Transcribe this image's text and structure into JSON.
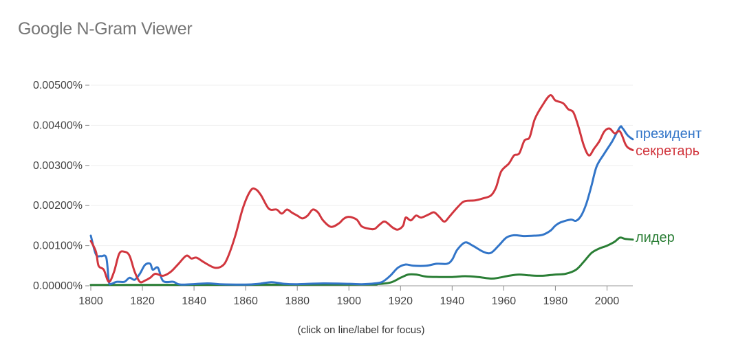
{
  "app": {
    "title": "Google N-Gram Viewer"
  },
  "hint": "(click on line/label for focus)",
  "chart_data": {
    "type": "line",
    "xlim": [
      1800,
      2010
    ],
    "ylim": [
      0,
      0.005
    ],
    "x_ticks": [
      1800,
      1820,
      1840,
      1860,
      1880,
      1900,
      1920,
      1940,
      1960,
      1980,
      2000
    ],
    "x_tick_labels": [
      "1800",
      "1820",
      "1840",
      "1860",
      "1880",
      "1900",
      "1920",
      "1940",
      "1960",
      "1980",
      "2000"
    ],
    "y_ticks": [
      0,
      0.001,
      0.002,
      0.003,
      0.004,
      0.005
    ],
    "y_tick_labels": [
      "0.00000%",
      "0.00100%",
      "0.00200%",
      "0.00300%",
      "0.00400%",
      "0.00500%"
    ],
    "grid": true,
    "legend": "right-end labels",
    "series": [
      {
        "name": "президент",
        "color": "#3275c8",
        "points": [
          [
            1800,
            0.00125
          ],
          [
            1802,
            0.00078
          ],
          [
            1804,
            0.00074
          ],
          [
            1806,
            0.0007
          ],
          [
            1807,
            0.0001
          ],
          [
            1808,
            5e-05
          ],
          [
            1810,
            0.0001
          ],
          [
            1813,
            0.0001
          ],
          [
            1815,
            0.0002
          ],
          [
            1817,
            0.00015
          ],
          [
            1819,
            0.0003
          ],
          [
            1821,
            0.00052
          ],
          [
            1823,
            0.00055
          ],
          [
            1824,
            0.0004
          ],
          [
            1826,
            0.00045
          ],
          [
            1828,
            0.00012
          ],
          [
            1832,
            0.0001
          ],
          [
            1835,
            3e-05
          ],
          [
            1845,
            6e-05
          ],
          [
            1850,
            4e-05
          ],
          [
            1860,
            3e-05
          ],
          [
            1865,
            5e-05
          ],
          [
            1870,
            9e-05
          ],
          [
            1875,
            5e-05
          ],
          [
            1880,
            4e-05
          ],
          [
            1890,
            6e-05
          ],
          [
            1900,
            5e-05
          ],
          [
            1905,
            4e-05
          ],
          [
            1910,
            6e-05
          ],
          [
            1913,
            0.0001
          ],
          [
            1916,
            0.00025
          ],
          [
            1919,
            0.00045
          ],
          [
            1922,
            0.00053
          ],
          [
            1925,
            0.0005
          ],
          [
            1930,
            0.0005
          ],
          [
            1934,
            0.00055
          ],
          [
            1938,
            0.00055
          ],
          [
            1940,
            0.00065
          ],
          [
            1942,
            0.0009
          ],
          [
            1945,
            0.00108
          ],
          [
            1948,
            0.001
          ],
          [
            1952,
            0.00085
          ],
          [
            1955,
            0.00082
          ],
          [
            1958,
            0.001
          ],
          [
            1961,
            0.0012
          ],
          [
            1964,
            0.00126
          ],
          [
            1968,
            0.00124
          ],
          [
            1972,
            0.00125
          ],
          [
            1975,
            0.00127
          ],
          [
            1978,
            0.00137
          ],
          [
            1980,
            0.0015
          ],
          [
            1982,
            0.00158
          ],
          [
            1986,
            0.00165
          ],
          [
            1988,
            0.00162
          ],
          [
            1990,
            0.00175
          ],
          [
            1992,
            0.00205
          ],
          [
            1994,
            0.0025
          ],
          [
            1996,
            0.00298
          ],
          [
            1999,
            0.0033
          ],
          [
            2002,
            0.0036
          ],
          [
            2005,
            0.00395
          ],
          [
            2006,
            0.00393
          ],
          [
            2008,
            0.00375
          ],
          [
            2010,
            0.00365
          ]
        ]
      },
      {
        "name": "секретарь",
        "color": "#d1363e",
        "points": [
          [
            1800,
            0.00112
          ],
          [
            1802,
            0.00085
          ],
          [
            1803,
            0.0005
          ],
          [
            1805,
            0.0004
          ],
          [
            1807,
            0.0001
          ],
          [
            1809,
            0.00035
          ],
          [
            1811,
            0.0008
          ],
          [
            1813,
            0.00085
          ],
          [
            1815,
            0.00075
          ],
          [
            1817,
            0.00035
          ],
          [
            1819,
            0.0001
          ],
          [
            1821,
            0.00013
          ],
          [
            1823,
            0.0002
          ],
          [
            1825,
            0.0003
          ],
          [
            1828,
            0.00025
          ],
          [
            1831,
            0.00035
          ],
          [
            1834,
            0.00055
          ],
          [
            1837,
            0.00075
          ],
          [
            1839,
            0.00068
          ],
          [
            1841,
            0.0007
          ],
          [
            1844,
            0.00058
          ],
          [
            1848,
            0.00045
          ],
          [
            1851,
            0.0005
          ],
          [
            1853,
            0.0007
          ],
          [
            1856,
            0.00125
          ],
          [
            1859,
            0.00195
          ],
          [
            1862,
            0.00238
          ],
          [
            1864,
            0.0024
          ],
          [
            1866,
            0.00225
          ],
          [
            1869,
            0.00192
          ],
          [
            1872,
            0.0019
          ],
          [
            1874,
            0.0018
          ],
          [
            1876,
            0.0019
          ],
          [
            1878,
            0.00182
          ],
          [
            1880,
            0.00175
          ],
          [
            1882,
            0.00168
          ],
          [
            1884,
            0.00175
          ],
          [
            1886,
            0.0019
          ],
          [
            1888,
            0.00183
          ],
          [
            1890,
            0.00163
          ],
          [
            1893,
            0.00147
          ],
          [
            1896,
            0.00155
          ],
          [
            1898,
            0.00167
          ],
          [
            1900,
            0.00172
          ],
          [
            1903,
            0.00165
          ],
          [
            1905,
            0.00148
          ],
          [
            1908,
            0.00142
          ],
          [
            1910,
            0.00142
          ],
          [
            1912,
            0.00153
          ],
          [
            1914,
            0.0016
          ],
          [
            1917,
            0.00145
          ],
          [
            1919,
            0.0014
          ],
          [
            1921,
            0.0015
          ],
          [
            1922,
            0.0017
          ],
          [
            1924,
            0.00163
          ],
          [
            1926,
            0.00175
          ],
          [
            1928,
            0.0017
          ],
          [
            1931,
            0.00178
          ],
          [
            1933,
            0.00183
          ],
          [
            1935,
            0.00172
          ],
          [
            1937,
            0.0016
          ],
          [
            1939,
            0.00173
          ],
          [
            1941,
            0.00188
          ],
          [
            1944,
            0.00208
          ],
          [
            1946,
            0.00212
          ],
          [
            1949,
            0.00213
          ],
          [
            1952,
            0.00218
          ],
          [
            1955,
            0.00225
          ],
          [
            1957,
            0.00245
          ],
          [
            1959,
            0.00285
          ],
          [
            1962,
            0.00305
          ],
          [
            1964,
            0.00325
          ],
          [
            1966,
            0.0033
          ],
          [
            1968,
            0.00362
          ],
          [
            1970,
            0.0037
          ],
          [
            1972,
            0.00415
          ],
          [
            1975,
            0.0045
          ],
          [
            1978,
            0.00475
          ],
          [
            1980,
            0.00462
          ],
          [
            1983,
            0.00455
          ],
          [
            1985,
            0.0044
          ],
          [
            1987,
            0.00432
          ],
          [
            1989,
            0.00395
          ],
          [
            1991,
            0.0035
          ],
          [
            1993,
            0.00325
          ],
          [
            1995,
            0.00342
          ],
          [
            1997,
            0.0036
          ],
          [
            1999,
            0.00385
          ],
          [
            2001,
            0.00392
          ],
          [
            2003,
            0.0038
          ],
          [
            2005,
            0.00385
          ],
          [
            2007,
            0.00355
          ],
          [
            2008,
            0.00345
          ],
          [
            2010,
            0.00338
          ]
        ]
      },
      {
        "name": "лидер",
        "color": "#2a7e35",
        "points": [
          [
            1800,
            2e-05
          ],
          [
            1900,
            3e-05
          ],
          [
            1910,
            4e-05
          ],
          [
            1916,
            8e-05
          ],
          [
            1920,
            0.0002
          ],
          [
            1923,
            0.00028
          ],
          [
            1926,
            0.00028
          ],
          [
            1930,
            0.00023
          ],
          [
            1935,
            0.00022
          ],
          [
            1940,
            0.00022
          ],
          [
            1945,
            0.00024
          ],
          [
            1950,
            0.00022
          ],
          [
            1955,
            0.00018
          ],
          [
            1958,
            0.0002
          ],
          [
            1962,
            0.00025
          ],
          [
            1966,
            0.00028
          ],
          [
            1970,
            0.00026
          ],
          [
            1975,
            0.00025
          ],
          [
            1980,
            0.00028
          ],
          [
            1984,
            0.0003
          ],
          [
            1988,
            0.0004
          ],
          [
            1991,
            0.0006
          ],
          [
            1994,
            0.00082
          ],
          [
            1997,
            0.00093
          ],
          [
            2000,
            0.001
          ],
          [
            2003,
            0.0011
          ],
          [
            2005,
            0.0012
          ],
          [
            2007,
            0.00117
          ],
          [
            2010,
            0.00115
          ]
        ]
      }
    ]
  }
}
